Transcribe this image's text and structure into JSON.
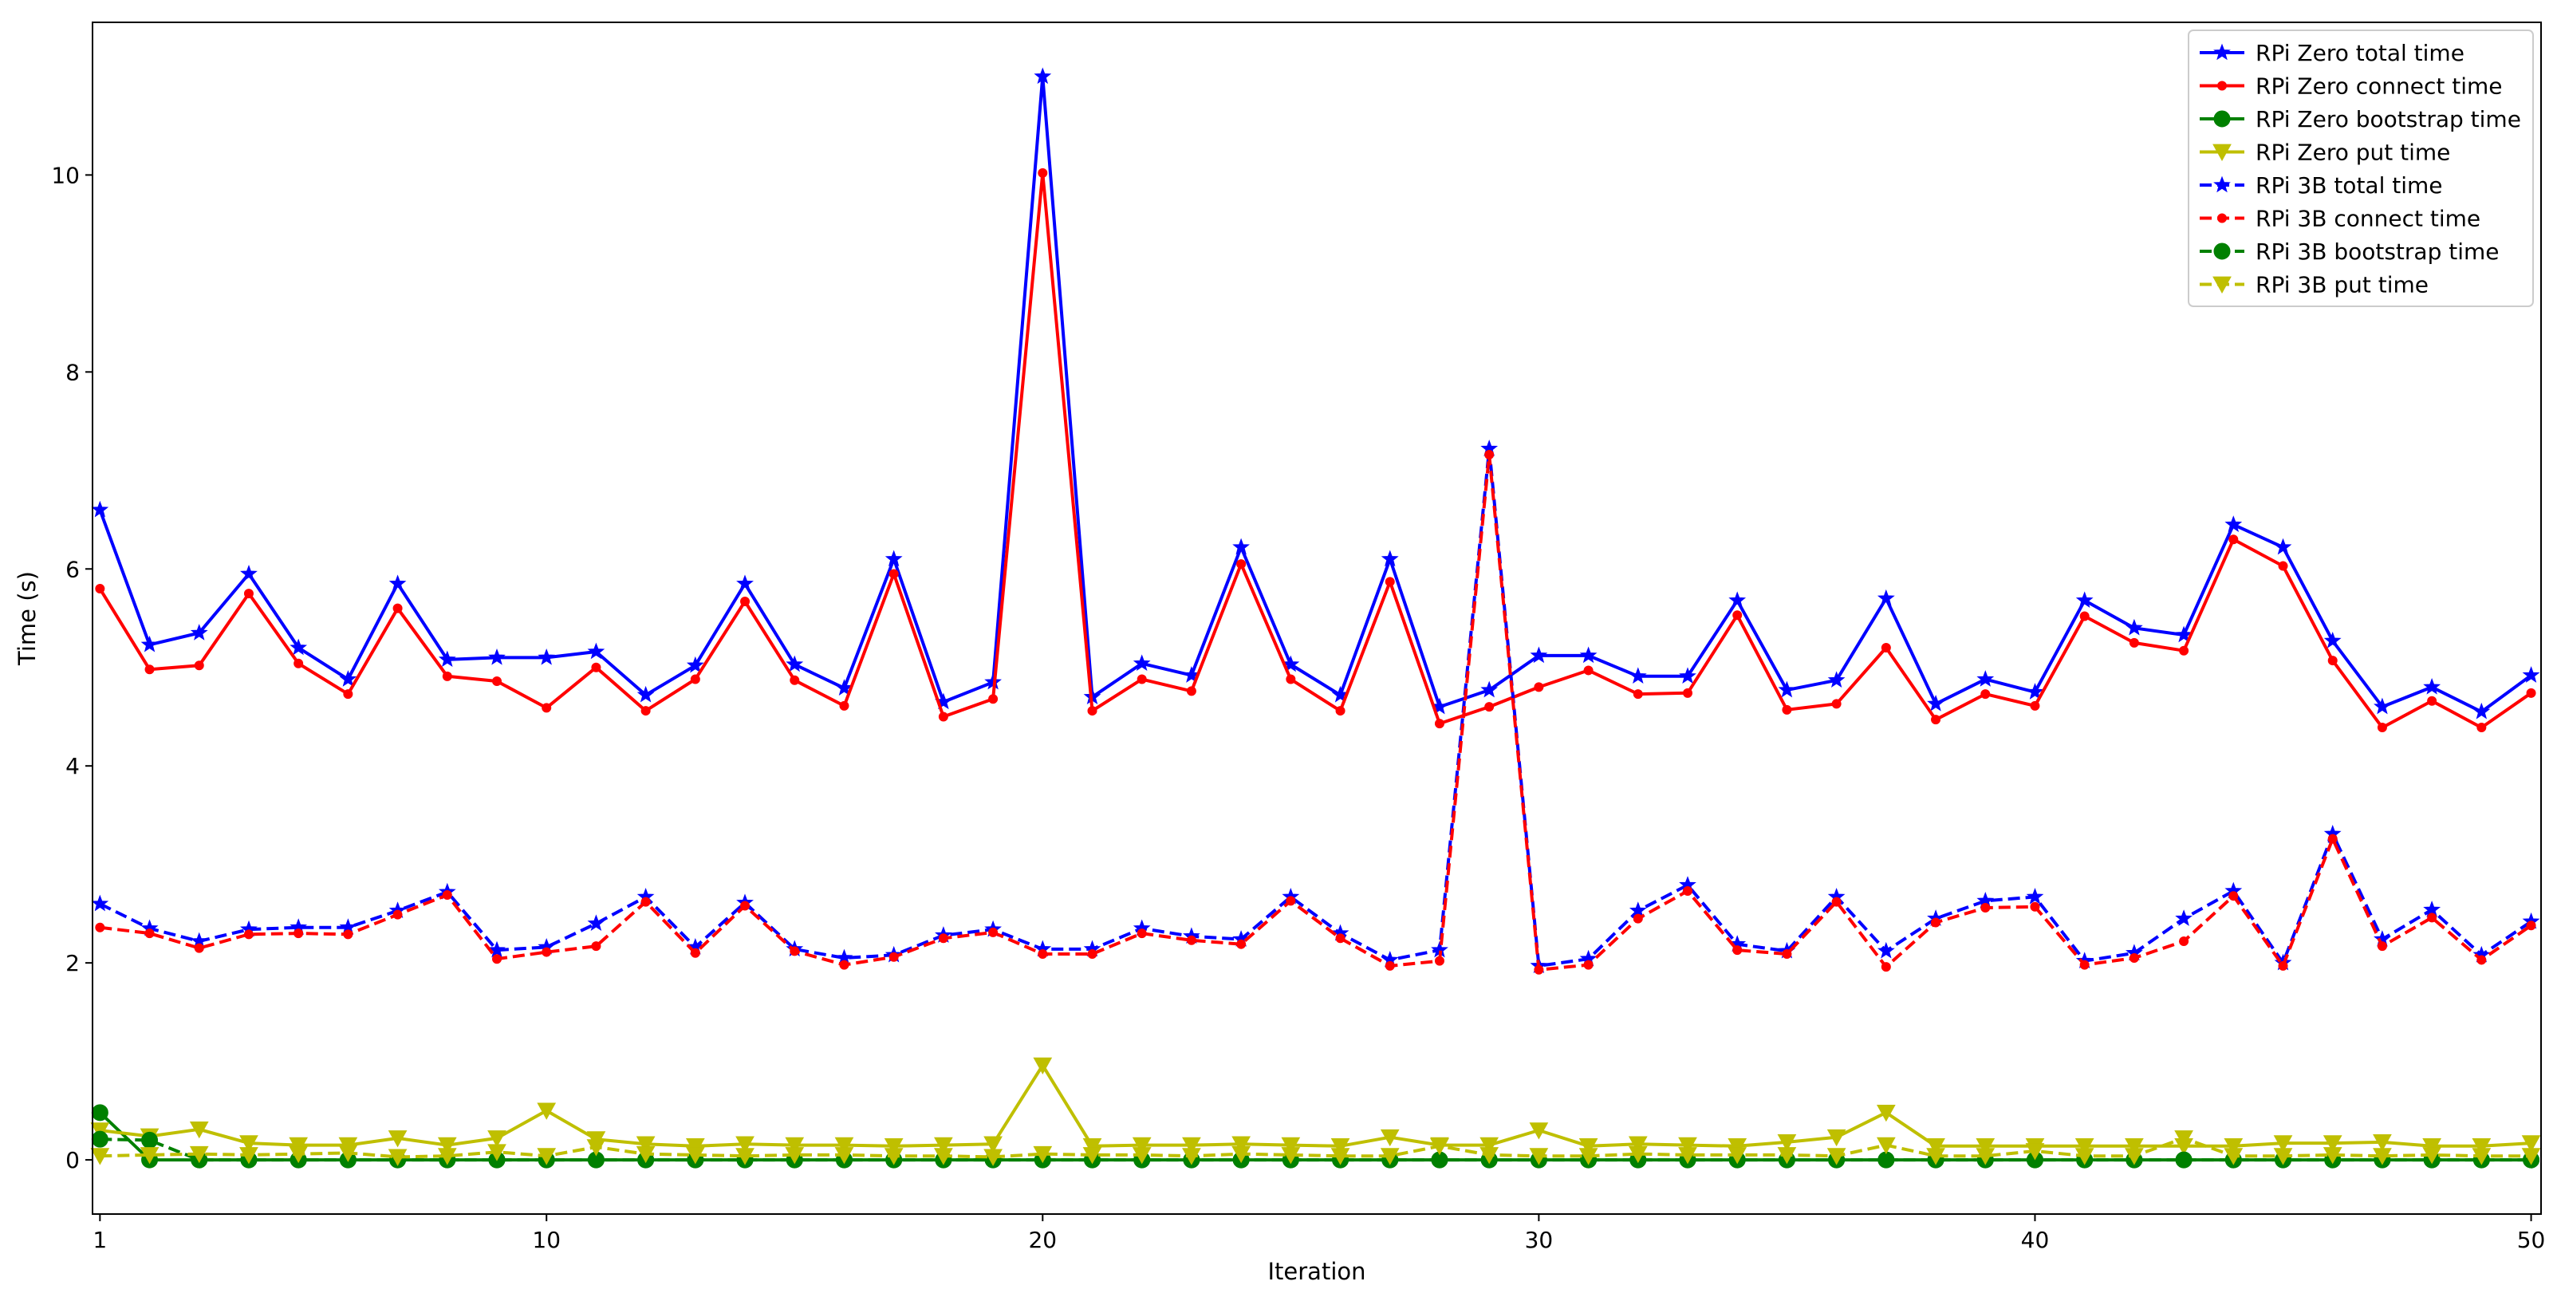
{
  "chart_data": {
    "type": "line",
    "title": "",
    "xlabel": "Iteration",
    "ylabel": "Time (s)",
    "xlim": [
      0.85,
      50.2
    ],
    "ylim": [
      -0.55,
      11.55
    ],
    "xticks": [
      1,
      10,
      20,
      30,
      40,
      50
    ],
    "yticks": [
      0,
      2,
      4,
      6,
      8,
      10
    ],
    "grid": false,
    "legend_position": "top-right",
    "x": [
      1,
      2,
      3,
      4,
      5,
      6,
      7,
      8,
      9,
      10,
      11,
      12,
      13,
      14,
      15,
      16,
      17,
      18,
      19,
      20,
      21,
      22,
      23,
      24,
      25,
      26,
      27,
      28,
      29,
      30,
      31,
      32,
      33,
      34,
      35,
      36,
      37,
      38,
      39,
      40,
      41,
      42,
      43,
      44,
      45,
      46,
      47,
      48,
      49,
      50
    ],
    "series": [
      {
        "name": "RPi Zero total time",
        "color": "#0000ff",
        "dash": "solid",
        "marker": "star",
        "values": [
          6.6,
          5.23,
          5.35,
          5.95,
          5.2,
          4.88,
          5.85,
          5.08,
          5.1,
          5.1,
          5.16,
          4.72,
          5.02,
          5.85,
          5.03,
          4.79,
          6.1,
          4.65,
          4.85,
          11.0,
          4.7,
          5.04,
          4.92,
          6.22,
          5.03,
          4.72,
          6.1,
          4.6,
          4.77,
          5.12,
          5.12,
          4.91,
          4.91,
          5.68,
          4.77,
          4.87,
          5.7,
          4.63,
          4.88,
          4.75,
          5.68,
          5.4,
          5.33,
          6.45,
          6.22,
          5.27,
          4.6,
          4.8,
          4.55,
          4.92
        ]
      },
      {
        "name": "RPi Zero connect time",
        "color": "#ff0000",
        "dash": "solid",
        "marker": "point",
        "values": [
          5.8,
          4.98,
          5.02,
          5.75,
          5.04,
          4.73,
          5.6,
          4.91,
          4.86,
          4.59,
          5.0,
          4.56,
          4.88,
          5.67,
          4.87,
          4.61,
          5.95,
          4.5,
          4.68,
          10.02,
          4.56,
          4.88,
          4.76,
          6.05,
          4.88,
          4.56,
          5.87,
          4.43,
          4.6,
          4.8,
          4.97,
          4.73,
          4.74,
          5.53,
          4.57,
          4.63,
          5.2,
          4.47,
          4.73,
          4.61,
          5.52,
          5.25,
          5.17,
          6.3,
          6.03,
          5.07,
          4.39,
          4.66,
          4.39,
          4.74
        ]
      },
      {
        "name": "RPi Zero bootstrap time",
        "color": "#008000",
        "dash": "solid",
        "marker": "circle",
        "values": [
          0.48,
          0.0,
          0.0,
          0.0,
          0.0,
          0.0,
          0.0,
          0.0,
          0.0,
          0.0,
          0.0,
          0.0,
          0.0,
          0.0,
          0.0,
          0.0,
          0.0,
          0.0,
          0.0,
          0.0,
          0.0,
          0.0,
          0.0,
          0.0,
          0.0,
          0.0,
          0.0,
          0.0,
          0.0,
          0.0,
          0.0,
          0.0,
          0.0,
          0.0,
          0.0,
          0.0,
          0.0,
          0.0,
          0.0,
          0.0,
          0.0,
          0.0,
          0.0,
          0.0,
          0.0,
          0.0,
          0.0,
          0.0,
          0.0,
          0.0
        ]
      },
      {
        "name": "RPi Zero put time",
        "color": "#bfbf00",
        "dash": "solid",
        "marker": "triangle_down",
        "values": [
          0.3,
          0.24,
          0.31,
          0.17,
          0.15,
          0.15,
          0.22,
          0.15,
          0.22,
          0.5,
          0.21,
          0.16,
          0.14,
          0.16,
          0.15,
          0.15,
          0.14,
          0.15,
          0.16,
          0.96,
          0.14,
          0.15,
          0.15,
          0.16,
          0.15,
          0.14,
          0.23,
          0.15,
          0.15,
          0.3,
          0.14,
          0.16,
          0.15,
          0.14,
          0.18,
          0.23,
          0.48,
          0.14,
          0.14,
          0.14,
          0.14,
          0.14,
          0.14,
          0.14,
          0.17,
          0.17,
          0.18,
          0.14,
          0.14,
          0.17
        ]
      },
      {
        "name": "RPi 3B total time",
        "color": "#0000ff",
        "dash": "dashed",
        "marker": "star",
        "values": [
          2.6,
          2.35,
          2.22,
          2.34,
          2.36,
          2.36,
          2.53,
          2.72,
          2.13,
          2.16,
          2.4,
          2.67,
          2.16,
          2.61,
          2.14,
          2.05,
          2.08,
          2.28,
          2.34,
          2.14,
          2.14,
          2.35,
          2.27,
          2.24,
          2.67,
          2.3,
          2.03,
          2.13,
          7.22,
          1.97,
          2.04,
          2.53,
          2.79,
          2.19,
          2.12,
          2.67,
          2.12,
          2.45,
          2.63,
          2.67,
          2.02,
          2.1,
          2.45,
          2.73,
          2.0,
          3.31,
          2.24,
          2.54,
          2.08,
          2.42
        ]
      },
      {
        "name": "RPi 3B connect time",
        "color": "#ff0000",
        "dash": "dashed",
        "marker": "point",
        "values": [
          2.36,
          2.3,
          2.15,
          2.29,
          2.3,
          2.29,
          2.49,
          2.69,
          2.04,
          2.11,
          2.17,
          2.62,
          2.1,
          2.58,
          2.12,
          1.98,
          2.06,
          2.25,
          2.31,
          2.09,
          2.09,
          2.3,
          2.23,
          2.19,
          2.63,
          2.25,
          1.97,
          2.02,
          7.16,
          1.93,
          1.98,
          2.45,
          2.73,
          2.13,
          2.09,
          2.62,
          1.96,
          2.41,
          2.56,
          2.57,
          1.98,
          2.05,
          2.22,
          2.68,
          1.97,
          3.26,
          2.17,
          2.46,
          2.03,
          2.38
        ]
      },
      {
        "name": "RPi 3B bootstrap time",
        "color": "#008000",
        "dash": "dashed",
        "marker": "circle",
        "values": [
          0.21,
          0.2,
          0.0,
          0.0,
          0.0,
          0.0,
          0.0,
          0.0,
          0.0,
          0.0,
          0.0,
          0.0,
          0.0,
          0.0,
          0.0,
          0.0,
          0.0,
          0.0,
          0.0,
          0.0,
          0.0,
          0.0,
          0.0,
          0.0,
          0.0,
          0.0,
          0.0,
          0.0,
          0.0,
          0.0,
          0.0,
          0.0,
          0.0,
          0.0,
          0.0,
          0.0,
          0.0,
          0.0,
          0.0,
          0.0,
          0.0,
          0.0,
          0.0,
          0.0,
          0.0,
          0.0,
          0.0,
          0.0,
          0.0,
          0.0
        ]
      },
      {
        "name": "RPi 3B put time",
        "color": "#bfbf00",
        "dash": "dashed",
        "marker": "triangle_down",
        "values": [
          0.04,
          0.05,
          0.06,
          0.05,
          0.06,
          0.07,
          0.03,
          0.04,
          0.08,
          0.04,
          0.13,
          0.06,
          0.05,
          0.04,
          0.05,
          0.05,
          0.04,
          0.04,
          0.03,
          0.06,
          0.05,
          0.05,
          0.04,
          0.06,
          0.05,
          0.04,
          0.04,
          0.14,
          0.05,
          0.04,
          0.04,
          0.06,
          0.05,
          0.05,
          0.05,
          0.04,
          0.15,
          0.04,
          0.04,
          0.09,
          0.04,
          0.04,
          0.22,
          0.04,
          0.04,
          0.05,
          0.04,
          0.05,
          0.04,
          0.04
        ]
      }
    ]
  }
}
